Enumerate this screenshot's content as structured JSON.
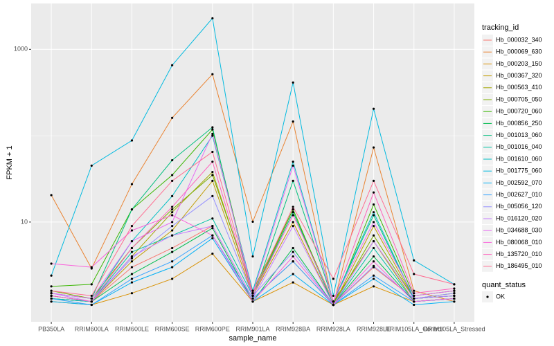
{
  "chart_data": {
    "type": "line",
    "log_y": true,
    "grid": true,
    "x_label": "sample_name",
    "y_label": "FPKM + 1",
    "legend_title": "tracking_id",
    "point_legend_title": "quant_status",
    "point_legend_label": "OK",
    "point_color": "#000000",
    "categories": [
      "PB350LA",
      "RRIM600LA",
      "RRIM600LE",
      "RRIM600SE",
      "RRIM600PE",
      "RRIM901LA",
      "RRIM928BA",
      "RRIM928LA",
      "RRIM928LE",
      "RRIM105LA_Control",
      "RRIM105LA_Stressed"
    ],
    "ylim": [
      0.7,
      3400
    ],
    "yticks": [
      10,
      1000
    ],
    "series": [
      {
        "name": "Hb_000032_340",
        "color": "#F8766D",
        "values": [
          1.3,
          1.2,
          3.0,
          5.0,
          9.0,
          1.3,
          3.5,
          1.1,
          3.0,
          1.3,
          1.4
        ]
      },
      {
        "name": "Hb_000069_630",
        "color": "#EA8331",
        "values": [
          20.5,
          2.9,
          27.5,
          161,
          515,
          10.1,
          146,
          1.1,
          73,
          1.6,
          1.2
        ]
      },
      {
        "name": "Hb_000203_150",
        "color": "#D89000",
        "values": [
          1.2,
          1.1,
          1.5,
          2.2,
          4.3,
          1.2,
          2.0,
          1.1,
          1.8,
          1.2,
          1.3
        ]
      },
      {
        "name": "Hb_000367_320",
        "color": "#C09B00",
        "values": [
          1.3,
          1.2,
          3.5,
          8.0,
          30,
          1.4,
          10,
          1.1,
          9,
          1.3,
          1.5
        ]
      },
      {
        "name": "Hb_000563_410",
        "color": "#A3A500",
        "values": [
          1.4,
          1.2,
          4,
          13,
          38,
          1.5,
          13,
          1.2,
          6,
          1.2,
          1.3
        ]
      },
      {
        "name": "Hb_000705_050",
        "color": "#7CAE00",
        "values": [
          1.6,
          1.3,
          5,
          14,
          35,
          1.6,
          14,
          1.1,
          7,
          1.3,
          1.4
        ]
      },
      {
        "name": "Hb_000720_060",
        "color": "#39B600",
        "values": [
          1.8,
          1.9,
          14,
          35,
          118,
          1.5,
          14,
          1.1,
          16,
          1.4,
          1.6
        ]
      },
      {
        "name": "Hb_000856_250",
        "color": "#00BB4E",
        "values": [
          1.3,
          1.2,
          2.5,
          4.5,
          8.5,
          1.2,
          5,
          1.1,
          4,
          1.2,
          1.3
        ]
      },
      {
        "name": "Hb_001013_060",
        "color": "#00BF7D",
        "values": [
          1.5,
          1.3,
          14,
          52,
          125,
          1.3,
          30,
          1.2,
          12,
          1.3,
          1.4
        ]
      },
      {
        "name": "Hb_001016_040",
        "color": "#00C1A3",
        "values": [
          1.4,
          1.2,
          4.5,
          7,
          11,
          1.4,
          13,
          1.1,
          5,
          1.2,
          1.3
        ]
      },
      {
        "name": "Hb_001610_060",
        "color": "#00BFC4",
        "values": [
          1.3,
          1.2,
          6,
          20,
          100,
          1.6,
          50,
          1.2,
          13,
          1.3,
          1.4
        ]
      },
      {
        "name": "Hb_001775_060",
        "color": "#00BAE0",
        "values": [
          2.4,
          45,
          88,
          655,
          2290,
          4,
          413,
          1.4,
          205,
          3.6,
          1.9
        ]
      },
      {
        "name": "Hb_002592_070",
        "color": "#00B0F6",
        "values": [
          1.2,
          1.1,
          2.0,
          3.0,
          6.5,
          1.2,
          2.5,
          1.1,
          2.2,
          1.1,
          1.2
        ]
      },
      {
        "name": "Hb_002627_010",
        "color": "#35A2FF",
        "values": [
          1.3,
          1.1,
          2.2,
          3.5,
          7,
          1.3,
          3.5,
          1.1,
          2.4,
          1.2,
          1.3
        ]
      },
      {
        "name": "Hb_005056_120",
        "color": "#9590FF",
        "values": [
          1.4,
          1.2,
          3.8,
          9,
          20,
          1.4,
          4.5,
          1.1,
          3.1,
          1.3,
          1.5
        ]
      },
      {
        "name": "Hb_016120_020",
        "color": "#C77CFF",
        "values": [
          1.5,
          1.2,
          4,
          7,
          9,
          1.3,
          9,
          1.1,
          6,
          1.3,
          1.4
        ]
      },
      {
        "name": "Hb_034688_030",
        "color": "#E76BF3",
        "values": [
          1.5,
          1.3,
          6,
          10,
          105,
          1.5,
          45,
          1.2,
          10,
          1.4,
          1.6
        ]
      },
      {
        "name": "Hb_080068_010",
        "color": "#FA62DB",
        "values": [
          3.3,
          3,
          8,
          12,
          7,
          1.2,
          4,
          1.1,
          3.5,
          1.2,
          1.3
        ]
      },
      {
        "name": "Hb_135720_010",
        "color": "#FF62BC",
        "values": [
          1.4,
          1.2,
          5,
          15,
          50,
          1.4,
          12,
          1.2,
          22,
          1.5,
          1.7
        ]
      },
      {
        "name": "Hb_186495_010",
        "color": "#FF6C91",
        "values": [
          1.6,
          1.4,
          9,
          30,
          65,
          1.5,
          15,
          2.2,
          30,
          2.5,
          1.9
        ]
      }
    ]
  }
}
